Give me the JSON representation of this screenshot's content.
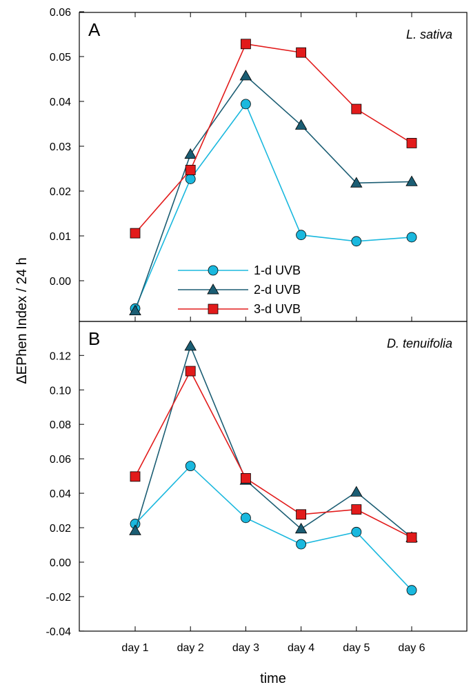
{
  "chart_data": {
    "type": "line",
    "ylabel": "ΔEPhen Index / 24 h",
    "xlabel": "time",
    "categories": [
      "day 1",
      "day 2",
      "day 3",
      "day 4",
      "day 5",
      "day 6"
    ],
    "legend": {
      "placement": "inside panel A, lower center",
      "entries": [
        "1-d UVB",
        "2-d UVB",
        "3-d UVB"
      ]
    },
    "series_style": [
      {
        "name": "1-d UVB",
        "color": "#1ab8de",
        "marker": "circle"
      },
      {
        "name": "2-d UVB",
        "color": "#1b5d73",
        "marker": "triangle"
      },
      {
        "name": "3-d UVB",
        "color": "#e21b1b",
        "marker": "square"
      }
    ],
    "panels": [
      {
        "letter": "A",
        "species": "L. sativa",
        "ylim": [
          -0.0065,
          0.06
        ],
        "yticks": [
          "0.00",
          "0.01",
          "0.02",
          "0.03",
          "0.04",
          "0.05",
          "0.06"
        ],
        "series": [
          {
            "name": "1-d UVB",
            "values": [
              -0.0062,
              0.0227,
              0.0394,
              0.0102,
              0.0088,
              0.0097
            ]
          },
          {
            "name": "2-d UVB",
            "values": [
              -0.0067,
              0.0282,
              0.0457,
              0.0347,
              0.0218,
              0.0221
            ]
          },
          {
            "name": "3-d UVB",
            "values": [
              0.0106,
              0.0247,
              0.0528,
              0.0509,
              0.0383,
              0.0307
            ]
          }
        ]
      },
      {
        "letter": "B",
        "species": "D. tenuifolia",
        "ylim": [
          -0.04,
          0.14
        ],
        "yticks": [
          "-0.04",
          "-0.02",
          "0.00",
          "0.02",
          "0.04",
          "0.06",
          "0.08",
          "0.10",
          "0.12"
        ],
        "series": [
          {
            "name": "1-d UVB",
            "values": [
              0.0222,
              0.0558,
              0.0257,
              0.0104,
              0.0175,
              -0.0163
            ]
          },
          {
            "name": "2-d UVB",
            "values": [
              0.0183,
              0.1254,
              0.0476,
              0.0193,
              0.0407,
              0.0143
            ]
          },
          {
            "name": "3-d UVB",
            "values": [
              0.0497,
              0.1109,
              0.0487,
              0.0277,
              0.0306,
              0.0143
            ]
          }
        ]
      }
    ]
  }
}
